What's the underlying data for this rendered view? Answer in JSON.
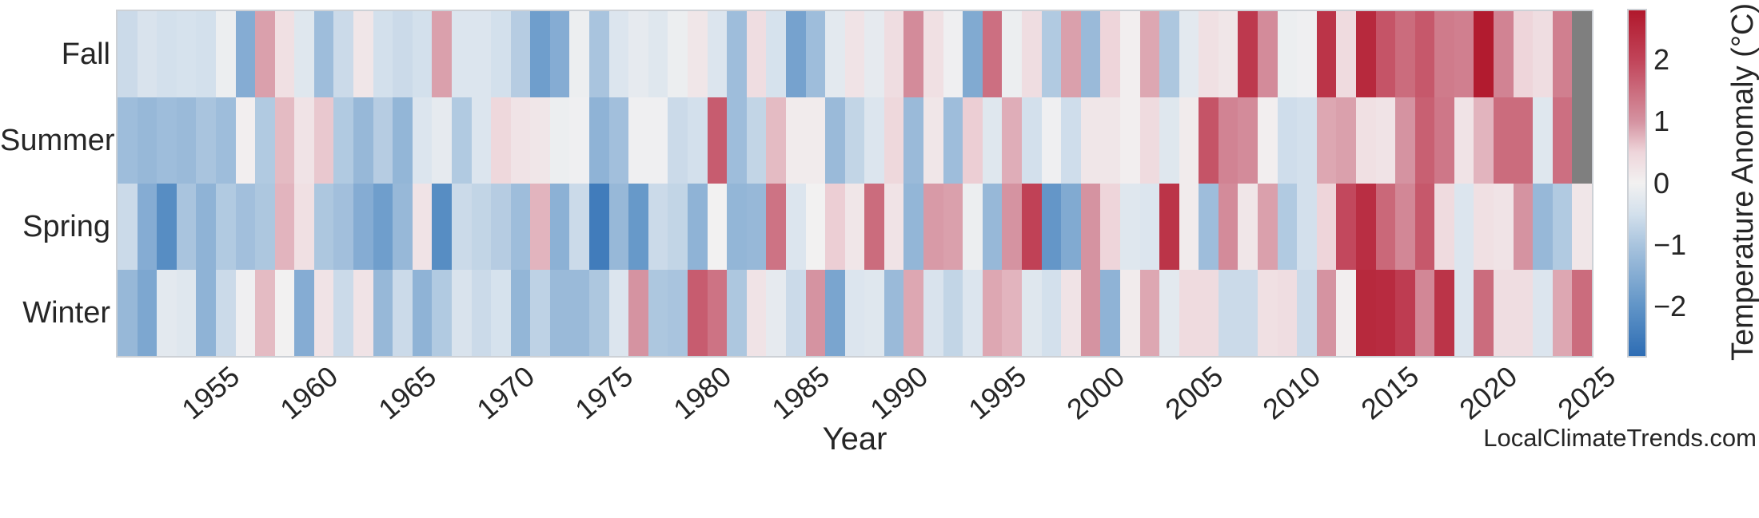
{
  "watermark": "LocalClimateTrends.com",
  "axes": {
    "x_label": "Year",
    "x_tick_labels": [
      "1955",
      "1960",
      "1965",
      "1970",
      "1975",
      "1980",
      "1985",
      "1990",
      "1995",
      "2000",
      "2005",
      "2010",
      "2015",
      "2020",
      "2025"
    ],
    "y_categories": [
      "Fall",
      "Summer",
      "Spring",
      "Winter"
    ]
  },
  "colorbar": {
    "label": "Temperature Anomaly (°C)",
    "tick_labels": [
      "2",
      "1",
      "0",
      "−1",
      "−2"
    ],
    "tick_values": [
      2,
      1,
      0,
      -1,
      -2
    ],
    "vmin": -2.8,
    "vmax": 2.8,
    "missing_color": "#7f7f7f",
    "gradient_anchors": [
      {
        "v": -2.8,
        "color": "#2e6db4"
      },
      {
        "v": -2.0,
        "color": "#6094c7"
      },
      {
        "v": -1.0,
        "color": "#a9c4de"
      },
      {
        "v": -0.5,
        "color": "#d3e0ec"
      },
      {
        "v": 0.0,
        "color": "#f2f1f1"
      },
      {
        "v": 0.5,
        "color": "#eed5da"
      },
      {
        "v": 1.0,
        "color": "#d593a1"
      },
      {
        "v": 2.0,
        "color": "#c14459"
      },
      {
        "v": 2.8,
        "color": "#b1182c"
      }
    ]
  },
  "chart_data": {
    "type": "heatmap",
    "xlabel": "Year",
    "unit": "°C",
    "value_range": [
      -2.8,
      2.8
    ],
    "years": [
      1950,
      1951,
      1952,
      1953,
      1954,
      1955,
      1956,
      1957,
      1958,
      1959,
      1960,
      1961,
      1962,
      1963,
      1964,
      1965,
      1966,
      1967,
      1968,
      1969,
      1970,
      1971,
      1972,
      1973,
      1974,
      1975,
      1976,
      1977,
      1978,
      1979,
      1980,
      1981,
      1982,
      1983,
      1984,
      1985,
      1986,
      1987,
      1988,
      1989,
      1990,
      1991,
      1992,
      1993,
      1994,
      1995,
      1996,
      1997,
      1998,
      1999,
      2000,
      2001,
      2002,
      2003,
      2004,
      2005,
      2006,
      2007,
      2008,
      2009,
      2010,
      2011,
      2012,
      2013,
      2014,
      2015,
      2016,
      2017,
      2018,
      2019,
      2020,
      2021,
      2022,
      2023,
      2024
    ],
    "rows": [
      {
        "name": "Fall",
        "values": [
          -0.6,
          -0.4,
          -0.5,
          -0.45,
          -0.5,
          -0.1,
          -1.5,
          0.9,
          0.3,
          -0.3,
          -1.15,
          -0.6,
          0.2,
          -0.5,
          -0.6,
          -0.5,
          0.9,
          -0.35,
          -0.35,
          -0.5,
          -0.85,
          -1.8,
          -1.5,
          -0.1,
          -1.0,
          -0.35,
          -0.2,
          -0.3,
          -0.1,
          0.2,
          -0.35,
          -1.15,
          0.35,
          -0.45,
          -1.7,
          -1.15,
          -0.25,
          0.25,
          -0.2,
          0.35,
          1.1,
          0.3,
          -0.05,
          -1.55,
          1.45,
          -0.1,
          0.35,
          -0.9,
          0.9,
          -1.2,
          0.5,
          0.05,
          0.85,
          -0.95,
          -0.25,
          0.3,
          0.2,
          2.2,
          1.1,
          -0.1,
          -0.05,
          2.3,
          0.4,
          2.5,
          1.8,
          1.5,
          1.75,
          1.3,
          1.25,
          2.75,
          1.2,
          0.5,
          0.35,
          1.25,
          null
        ]
      },
      {
        "name": "Summer",
        "values": [
          -1.15,
          -1.25,
          -1.15,
          -1.2,
          -1.0,
          -1.15,
          0.05,
          -0.9,
          0.7,
          0.25,
          0.6,
          -0.9,
          -1.25,
          -0.85,
          -1.3,
          -0.35,
          -0.2,
          -0.9,
          -0.35,
          0.45,
          0.25,
          0.2,
          -0.1,
          -0.05,
          -1.35,
          -1.1,
          -0.05,
          -0.05,
          -0.6,
          -0.5,
          1.7,
          -1.15,
          -0.7,
          0.7,
          0.1,
          0.1,
          -1.2,
          -0.7,
          -0.35,
          0.45,
          -1.2,
          0.2,
          -1.15,
          0.55,
          -0.3,
          0.8,
          -0.5,
          -0.05,
          -0.55,
          0.2,
          0.2,
          0.05,
          0.4,
          -0.3,
          0.1,
          1.8,
          1.2,
          1.1,
          0.05,
          -0.55,
          -0.5,
          0.85,
          0.9,
          0.3,
          0.25,
          1.0,
          1.65,
          1.35,
          0.25,
          0.75,
          1.5,
          1.5,
          -0.3,
          1.45,
          null
        ]
      },
      {
        "name": "Spring",
        "values": [
          -0.6,
          -1.5,
          -2.15,
          -1.0,
          -1.35,
          -0.9,
          -1.1,
          -0.95,
          0.75,
          0.3,
          -0.95,
          -1.1,
          -1.5,
          -1.8,
          -1.25,
          0.25,
          -2.15,
          -0.6,
          -0.7,
          -0.85,
          -1.15,
          0.75,
          -1.4,
          -0.6,
          -2.5,
          -1.25,
          -1.9,
          -0.6,
          -0.7,
          -1.35,
          0.0,
          -1.3,
          -1.25,
          1.4,
          -0.35,
          0.0,
          0.55,
          0.2,
          1.5,
          0.25,
          -1.3,
          0.95,
          0.9,
          -0.1,
          -1.25,
          1.0,
          2.05,
          -1.95,
          -1.55,
          1.0,
          0.5,
          -0.3,
          -0.35,
          2.3,
          0.1,
          -1.15,
          1.1,
          0.2,
          0.9,
          -0.9,
          -0.5,
          0.5,
          1.95,
          2.4,
          1.55,
          1.15,
          1.75,
          0.4,
          -0.35,
          0.3,
          0.25,
          1.0,
          -1.25,
          -0.9,
          0.2
        ]
      },
      {
        "name": "Winter",
        "values": [
          -1.25,
          -1.6,
          -0.25,
          -0.3,
          -1.35,
          -0.6,
          -0.05,
          0.7,
          0.0,
          -1.5,
          0.25,
          -0.6,
          0.25,
          -1.25,
          -0.6,
          -1.35,
          -0.9,
          -0.4,
          -0.6,
          -0.45,
          -1.3,
          -0.75,
          -1.2,
          -1.2,
          -0.95,
          -0.35,
          1.0,
          -0.95,
          -1.0,
          1.7,
          1.4,
          -0.95,
          0.25,
          -0.2,
          -0.6,
          1.0,
          -1.65,
          -0.35,
          -0.3,
          -1.2,
          0.85,
          -0.4,
          -0.7,
          -0.35,
          0.85,
          0.75,
          -0.3,
          -0.5,
          0.25,
          1.0,
          -1.35,
          0.1,
          0.85,
          -0.25,
          0.4,
          0.4,
          -0.6,
          -0.6,
          0.3,
          0.35,
          -0.6,
          1.0,
          0.05,
          2.5,
          2.45,
          2.15,
          1.15,
          2.3,
          -0.35,
          1.5,
          0.35,
          0.35,
          -0.35,
          0.85,
          1.5
        ]
      }
    ]
  }
}
